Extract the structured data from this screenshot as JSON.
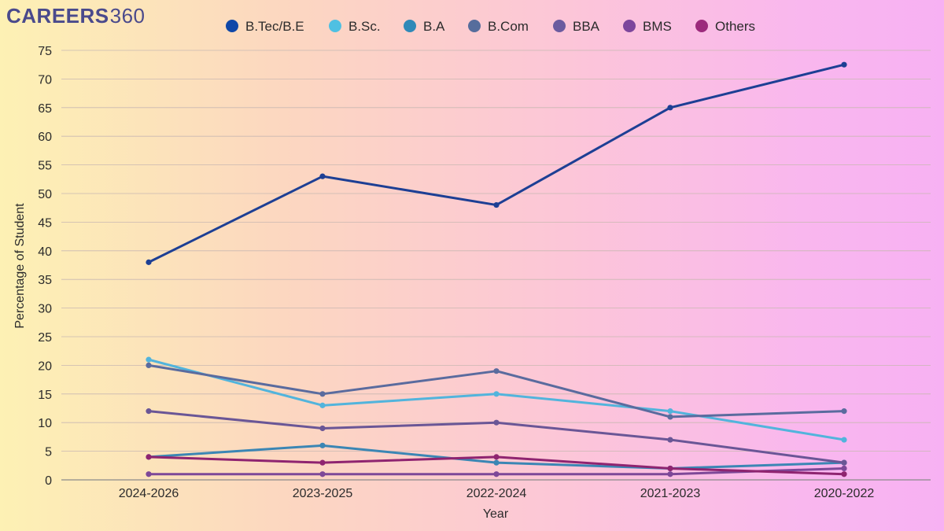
{
  "brand": {
    "word1": "CAREERS",
    "word2": "360"
  },
  "chart_data": {
    "type": "line",
    "xlabel": "Year",
    "ylabel": "Percentage of Student",
    "categories": [
      "2024-2026",
      "2023-2025",
      "2022-2024",
      "2021-2023",
      "2020-2022"
    ],
    "ylim": [
      0,
      75
    ],
    "yticks": [
      0,
      5,
      10,
      15,
      20,
      25,
      30,
      35,
      40,
      45,
      50,
      55,
      60,
      65,
      70,
      75
    ],
    "grid": true,
    "legend_position": "top",
    "series": [
      {
        "name": "B.Tec/B.E",
        "color": "#1d3f94",
        "legend_color": "#0f47a8",
        "values": [
          38,
          53,
          48,
          65,
          72.5
        ]
      },
      {
        "name": "B.Sc.",
        "color": "#52b4dc",
        "legend_color": "#4fc0e2",
        "values": [
          21,
          13,
          15,
          12,
          7
        ]
      },
      {
        "name": "B.A",
        "color": "#3b86b4",
        "legend_color": "#2f89b8",
        "values": [
          4,
          6,
          3,
          2,
          3
        ]
      },
      {
        "name": "B.Com",
        "color": "#5a6b9e",
        "legend_color": "#566d9c",
        "values": [
          20,
          15,
          19,
          11,
          12
        ]
      },
      {
        "name": "BBA",
        "color": "#6a5696",
        "legend_color": "#6b5b9f",
        "values": [
          12,
          9,
          10,
          7,
          3
        ]
      },
      {
        "name": "BMS",
        "color": "#7d4898",
        "legend_color": "#7c469c",
        "values": [
          1,
          1,
          1,
          1,
          2
        ]
      },
      {
        "name": "Others",
        "color": "#8f2470",
        "legend_color": "#9c2a7c",
        "values": [
          4,
          3,
          4,
          2,
          1
        ]
      }
    ]
  }
}
